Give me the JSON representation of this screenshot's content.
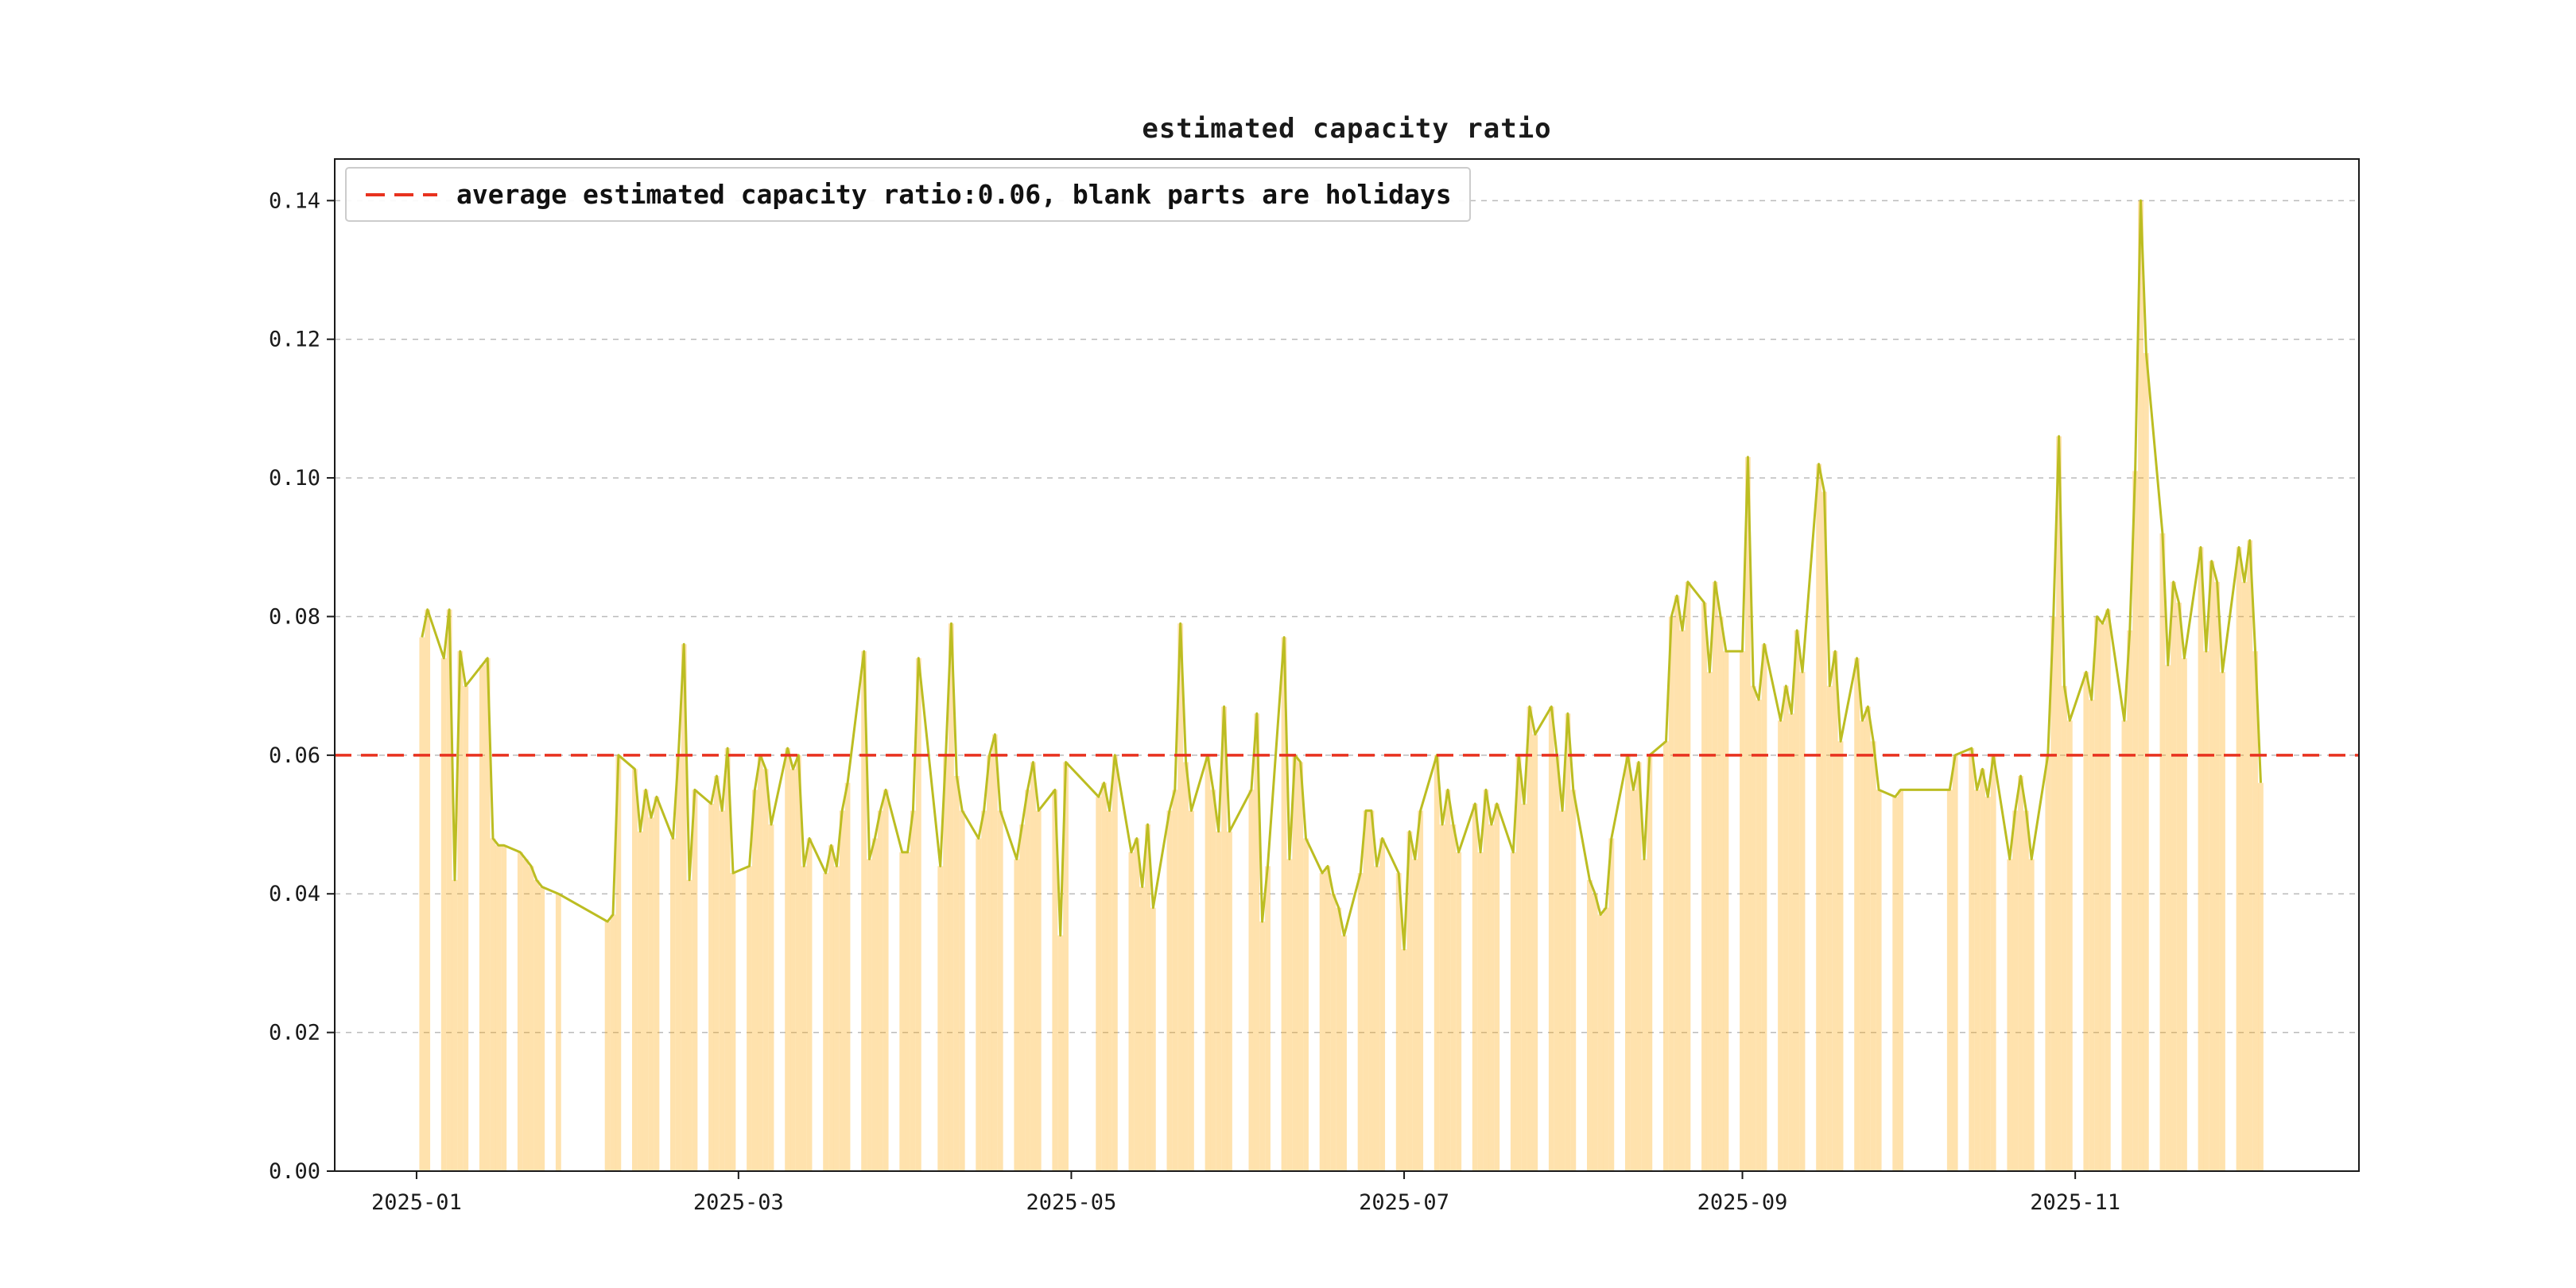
{
  "figure": {
    "background": "#ffffff"
  },
  "chart_data": {
    "type": "line",
    "title": "estimated capacity ratio",
    "note": "bars mark workdays; blank parts are holidays",
    "average_line": {
      "value": 0.06,
      "label": "average estimated capacity ratio:0.06, blank parts are holidays"
    },
    "legend_position": "upper left",
    "grid": "horizontal dashed",
    "x_domain": [
      "2024-12-17",
      "2025-12-23"
    ],
    "y_domain": [
      0,
      0.146
    ],
    "y_ticks": [
      0.0,
      0.02,
      0.04,
      0.06,
      0.08,
      0.1,
      0.12,
      0.14
    ],
    "y_tick_labels": [
      "0.00",
      "0.02",
      "0.04",
      "0.06",
      "0.08",
      "0.10",
      "0.12",
      "0.14"
    ],
    "x_ticks": [
      [
        "2025-01-01",
        "2025-01"
      ],
      [
        "2025-03-01",
        "2025-03"
      ],
      [
        "2025-05-01",
        "2025-05"
      ],
      [
        "2025-07-01",
        "2025-07"
      ],
      [
        "2025-09-01",
        "2025-09"
      ],
      [
        "2025-11-01",
        "2025-11"
      ]
    ],
    "bar_opacity": 0.32,
    "colors": {
      "line": "#bcbd22",
      "bar": "#ffa500",
      "average": "#e8321f",
      "grid": "#bbbbbb",
      "spine": "#1a1a1a",
      "text": "#1a1a1a"
    },
    "series": [
      {
        "name": "estimated capacity ratio",
        "style": "line over workday bars",
        "points": [
          [
            "2025-01-02",
            0.077
          ],
          [
            "2025-01-03",
            0.081
          ],
          [
            "2025-01-06",
            0.074
          ],
          [
            "2025-01-07",
            0.081
          ],
          [
            "2025-01-08",
            0.042
          ],
          [
            "2025-01-09",
            0.075
          ],
          [
            "2025-01-10",
            0.07
          ],
          [
            "2025-01-13",
            0.073
          ],
          [
            "2025-01-14",
            0.074
          ],
          [
            "2025-01-15",
            0.048
          ],
          [
            "2025-01-16",
            0.047
          ],
          [
            "2025-01-17",
            0.047
          ],
          [
            "2025-01-20",
            0.046
          ],
          [
            "2025-01-21",
            0.045
          ],
          [
            "2025-01-22",
            0.044
          ],
          [
            "2025-01-23",
            0.042
          ],
          [
            "2025-01-24",
            0.041
          ],
          [
            "2025-01-27",
            0.04
          ],
          [
            "2025-02-05",
            0.036
          ],
          [
            "2025-02-06",
            0.037
          ],
          [
            "2025-02-07",
            0.06
          ],
          [
            "2025-02-10",
            0.058
          ],
          [
            "2025-02-11",
            0.049
          ],
          [
            "2025-02-12",
            0.055
          ],
          [
            "2025-02-13",
            0.051
          ],
          [
            "2025-02-14",
            0.054
          ],
          [
            "2025-02-17",
            0.048
          ],
          [
            "2025-02-18",
            0.06
          ],
          [
            "2025-02-19",
            0.076
          ],
          [
            "2025-02-20",
            0.042
          ],
          [
            "2025-02-21",
            0.055
          ],
          [
            "2025-02-24",
            0.053
          ],
          [
            "2025-02-25",
            0.057
          ],
          [
            "2025-02-26",
            0.052
          ],
          [
            "2025-02-27",
            0.061
          ],
          [
            "2025-02-28",
            0.043
          ],
          [
            "2025-03-03",
            0.044
          ],
          [
            "2025-03-04",
            0.055
          ],
          [
            "2025-03-05",
            0.06
          ],
          [
            "2025-03-06",
            0.058
          ],
          [
            "2025-03-07",
            0.05
          ],
          [
            "2025-03-10",
            0.061
          ],
          [
            "2025-03-11",
            0.058
          ],
          [
            "2025-03-12",
            0.06
          ],
          [
            "2025-03-13",
            0.044
          ],
          [
            "2025-03-14",
            0.048
          ],
          [
            "2025-03-17",
            0.043
          ],
          [
            "2025-03-18",
            0.047
          ],
          [
            "2025-03-19",
            0.044
          ],
          [
            "2025-03-20",
            0.052
          ],
          [
            "2025-03-21",
            0.056
          ],
          [
            "2025-03-24",
            0.075
          ],
          [
            "2025-03-25",
            0.045
          ],
          [
            "2025-03-26",
            0.048
          ],
          [
            "2025-03-27",
            0.052
          ],
          [
            "2025-03-28",
            0.055
          ],
          [
            "2025-03-31",
            0.046
          ],
          [
            "2025-04-01",
            0.046
          ],
          [
            "2025-04-02",
            0.052
          ],
          [
            "2025-04-03",
            0.074
          ],
          [
            "2025-04-07",
            0.044
          ],
          [
            "2025-04-08",
            0.06
          ],
          [
            "2025-04-09",
            0.079
          ],
          [
            "2025-04-10",
            0.057
          ],
          [
            "2025-04-11",
            0.052
          ],
          [
            "2025-04-14",
            0.048
          ],
          [
            "2025-04-15",
            0.052
          ],
          [
            "2025-04-16",
            0.06
          ],
          [
            "2025-04-17",
            0.063
          ],
          [
            "2025-04-18",
            0.052
          ],
          [
            "2025-04-21",
            0.045
          ],
          [
            "2025-04-22",
            0.05
          ],
          [
            "2025-04-23",
            0.055
          ],
          [
            "2025-04-24",
            0.059
          ],
          [
            "2025-04-25",
            0.052
          ],
          [
            "2025-04-28",
            0.055
          ],
          [
            "2025-04-29",
            0.034
          ],
          [
            "2025-04-30",
            0.059
          ],
          [
            "2025-05-06",
            0.054
          ],
          [
            "2025-05-07",
            0.056
          ],
          [
            "2025-05-08",
            0.052
          ],
          [
            "2025-05-09",
            0.06
          ],
          [
            "2025-05-12",
            0.046
          ],
          [
            "2025-05-13",
            0.048
          ],
          [
            "2025-05-14",
            0.041
          ],
          [
            "2025-05-15",
            0.05
          ],
          [
            "2025-05-16",
            0.038
          ],
          [
            "2025-05-19",
            0.052
          ],
          [
            "2025-05-20",
            0.055
          ],
          [
            "2025-05-21",
            0.079
          ],
          [
            "2025-05-22",
            0.059
          ],
          [
            "2025-05-23",
            0.052
          ],
          [
            "2025-05-26",
            0.06
          ],
          [
            "2025-05-27",
            0.055
          ],
          [
            "2025-05-28",
            0.049
          ],
          [
            "2025-05-29",
            0.067
          ],
          [
            "2025-05-30",
            0.049
          ],
          [
            "2025-06-03",
            0.055
          ],
          [
            "2025-06-04",
            0.066
          ],
          [
            "2025-06-05",
            0.036
          ],
          [
            "2025-06-06",
            0.044
          ],
          [
            "2025-06-09",
            0.077
          ],
          [
            "2025-06-10",
            0.045
          ],
          [
            "2025-06-11",
            0.06
          ],
          [
            "2025-06-12",
            0.059
          ],
          [
            "2025-06-13",
            0.048
          ],
          [
            "2025-06-16",
            0.043
          ],
          [
            "2025-06-17",
            0.044
          ],
          [
            "2025-06-18",
            0.04
          ],
          [
            "2025-06-19",
            0.038
          ],
          [
            "2025-06-20",
            0.034
          ],
          [
            "2025-06-23",
            0.043
          ],
          [
            "2025-06-24",
            0.052
          ],
          [
            "2025-06-25",
            0.052
          ],
          [
            "2025-06-26",
            0.044
          ],
          [
            "2025-06-27",
            0.048
          ],
          [
            "2025-06-30",
            0.043
          ],
          [
            "2025-07-01",
            0.032
          ],
          [
            "2025-07-02",
            0.049
          ],
          [
            "2025-07-03",
            0.045
          ],
          [
            "2025-07-04",
            0.052
          ],
          [
            "2025-07-07",
            0.06
          ],
          [
            "2025-07-08",
            0.05
          ],
          [
            "2025-07-09",
            0.055
          ],
          [
            "2025-07-10",
            0.05
          ],
          [
            "2025-07-11",
            0.046
          ],
          [
            "2025-07-14",
            0.053
          ],
          [
            "2025-07-15",
            0.046
          ],
          [
            "2025-07-16",
            0.055
          ],
          [
            "2025-07-17",
            0.05
          ],
          [
            "2025-07-18",
            0.053
          ],
          [
            "2025-07-21",
            0.046
          ],
          [
            "2025-07-22",
            0.06
          ],
          [
            "2025-07-23",
            0.053
          ],
          [
            "2025-07-24",
            0.067
          ],
          [
            "2025-07-25",
            0.063
          ],
          [
            "2025-07-28",
            0.067
          ],
          [
            "2025-07-29",
            0.06
          ],
          [
            "2025-07-30",
            0.052
          ],
          [
            "2025-07-31",
            0.066
          ],
          [
            "2025-08-01",
            0.055
          ],
          [
            "2025-08-04",
            0.042
          ],
          [
            "2025-08-05",
            0.04
          ],
          [
            "2025-08-06",
            0.037
          ],
          [
            "2025-08-07",
            0.038
          ],
          [
            "2025-08-08",
            0.048
          ],
          [
            "2025-08-11",
            0.06
          ],
          [
            "2025-08-12",
            0.055
          ],
          [
            "2025-08-13",
            0.059
          ],
          [
            "2025-08-14",
            0.045
          ],
          [
            "2025-08-15",
            0.06
          ],
          [
            "2025-08-18",
            0.062
          ],
          [
            "2025-08-19",
            0.08
          ],
          [
            "2025-08-20",
            0.083
          ],
          [
            "2025-08-21",
            0.078
          ],
          [
            "2025-08-22",
            0.085
          ],
          [
            "2025-08-25",
            0.082
          ],
          [
            "2025-08-26",
            0.072
          ],
          [
            "2025-08-27",
            0.085
          ],
          [
            "2025-08-28",
            0.08
          ],
          [
            "2025-08-29",
            0.075
          ],
          [
            "2025-09-01",
            0.075
          ],
          [
            "2025-09-02",
            0.103
          ],
          [
            "2025-09-03",
            0.07
          ],
          [
            "2025-09-04",
            0.068
          ],
          [
            "2025-09-05",
            0.076
          ],
          [
            "2025-09-08",
            0.065
          ],
          [
            "2025-09-09",
            0.07
          ],
          [
            "2025-09-10",
            0.066
          ],
          [
            "2025-09-11",
            0.078
          ],
          [
            "2025-09-12",
            0.072
          ],
          [
            "2025-09-15",
            0.102
          ],
          [
            "2025-09-16",
            0.098
          ],
          [
            "2025-09-17",
            0.07
          ],
          [
            "2025-09-18",
            0.075
          ],
          [
            "2025-09-19",
            0.062
          ],
          [
            "2025-09-22",
            0.074
          ],
          [
            "2025-09-23",
            0.065
          ],
          [
            "2025-09-24",
            0.067
          ],
          [
            "2025-09-25",
            0.062
          ],
          [
            "2025-09-26",
            0.055
          ],
          [
            "2025-09-29",
            0.054
          ],
          [
            "2025-09-30",
            0.055
          ],
          [
            "2025-10-09",
            0.055
          ],
          [
            "2025-10-10",
            0.06
          ],
          [
            "2025-10-13",
            0.061
          ],
          [
            "2025-10-14",
            0.055
          ],
          [
            "2025-10-15",
            0.058
          ],
          [
            "2025-10-16",
            0.054
          ],
          [
            "2025-10-17",
            0.06
          ],
          [
            "2025-10-20",
            0.045
          ],
          [
            "2025-10-21",
            0.052
          ],
          [
            "2025-10-22",
            0.057
          ],
          [
            "2025-10-23",
            0.052
          ],
          [
            "2025-10-24",
            0.045
          ],
          [
            "2025-10-27",
            0.06
          ],
          [
            "2025-10-28",
            0.08
          ],
          [
            "2025-10-29",
            0.106
          ],
          [
            "2025-10-30",
            0.07
          ],
          [
            "2025-10-31",
            0.065
          ],
          [
            "2025-11-03",
            0.072
          ],
          [
            "2025-11-04",
            0.068
          ],
          [
            "2025-11-05",
            0.08
          ],
          [
            "2025-11-06",
            0.079
          ],
          [
            "2025-11-07",
            0.081
          ],
          [
            "2025-11-10",
            0.065
          ],
          [
            "2025-11-11",
            0.078
          ],
          [
            "2025-11-12",
            0.101
          ],
          [
            "2025-11-13",
            0.14
          ],
          [
            "2025-11-14",
            0.118
          ],
          [
            "2025-11-17",
            0.092
          ],
          [
            "2025-11-18",
            0.073
          ],
          [
            "2025-11-19",
            0.085
          ],
          [
            "2025-11-20",
            0.082
          ],
          [
            "2025-11-21",
            0.074
          ],
          [
            "2025-11-24",
            0.09
          ],
          [
            "2025-11-25",
            0.075
          ],
          [
            "2025-11-26",
            0.088
          ],
          [
            "2025-11-27",
            0.085
          ],
          [
            "2025-11-28",
            0.072
          ],
          [
            "2025-12-01",
            0.09
          ],
          [
            "2025-12-02",
            0.085
          ],
          [
            "2025-12-03",
            0.091
          ],
          [
            "2025-12-04",
            0.075
          ],
          [
            "2025-12-05",
            0.056
          ]
        ]
      }
    ]
  }
}
